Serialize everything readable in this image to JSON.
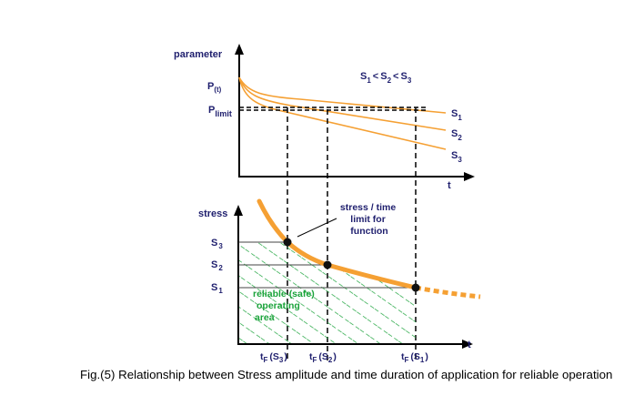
{
  "top_chart": {
    "y_axis_label": "parameter",
    "x_axis_label": "t",
    "p_t_label": "P",
    "p_t_sub": "(t)",
    "p_limit_label": "P",
    "p_limit_sub": "limit",
    "relation_label": {
      "s1": "S",
      "s1_sub": "1",
      "lt1": "<",
      "s2": "S",
      "s2_sub": "2",
      "lt2": "<",
      "s3": "S",
      "s3_sub": "3"
    },
    "curve_labels": [
      {
        "text": "S",
        "sub": "1"
      },
      {
        "text": "S",
        "sub": "2"
      },
      {
        "text": "S",
        "sub": "3"
      }
    ]
  },
  "bottom_chart": {
    "y_axis_label": "stress",
    "x_axis_label": "t",
    "stress_levels": [
      {
        "text": "S",
        "sub": "3"
      },
      {
        "text": "S",
        "sub": "2"
      },
      {
        "text": "S",
        "sub": "1"
      }
    ],
    "time_labels": [
      {
        "t": "t",
        "t_sub": "F",
        "s": "(S",
        "s_sub": "3",
        "close": ")"
      },
      {
        "t": "t",
        "t_sub": "F",
        "s": "(S",
        "s_sub": "2",
        "close": ")"
      },
      {
        "t": "t",
        "t_sub": "F",
        "s": "(S",
        "s_sub": "1",
        "close": ")"
      }
    ],
    "annotation_lines": [
      "stress / time",
      "limit for",
      "function"
    ],
    "safe_area_lines": [
      "reliable (safe)",
      "operating",
      "area"
    ]
  },
  "colors": {
    "curve": "#f5a033",
    "text": "#1f1f6e",
    "safe": "#1aa33a",
    "axis": "#000000"
  },
  "caption": "Fig.(5) Relationship between Stress amplitude and time duration of application for reliable operation"
}
